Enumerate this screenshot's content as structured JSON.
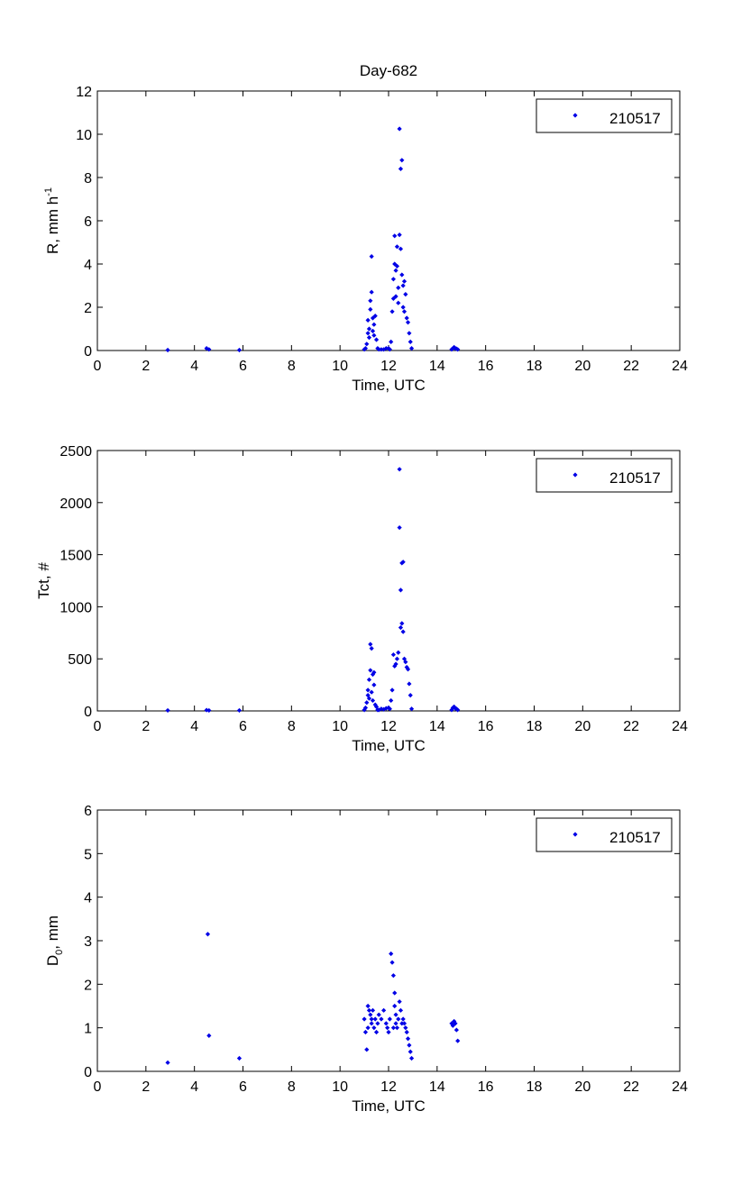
{
  "title": "Day-682",
  "legend_label": "210517",
  "colors": {
    "marker": "#0000e6",
    "axis": "#000000",
    "background": "#ffffff"
  },
  "chart_data": [
    {
      "type": "scatter",
      "title": "Day-682",
      "xlabel": "Time, UTC",
      "ylabel": "R, mm h",
      "ylabel_sup": "-1",
      "xlim": [
        0,
        24
      ],
      "ylim": [
        0,
        12
      ],
      "xticks": [
        0,
        2,
        4,
        6,
        8,
        10,
        12,
        14,
        16,
        18,
        20,
        22,
        24
      ],
      "yticks": [
        0,
        2,
        4,
        6,
        8,
        10,
        12
      ],
      "grid": false,
      "legend_position": "top-right",
      "series": [
        {
          "name": "210517",
          "x": [
            2.9,
            4.5,
            4.6,
            5.85,
            11.0,
            11.05,
            11.1,
            11.15,
            11.15,
            11.2,
            11.2,
            11.25,
            11.25,
            11.3,
            11.3,
            11.35,
            11.35,
            11.4,
            11.4,
            11.45,
            11.5,
            11.55,
            11.6,
            11.7,
            11.8,
            11.9,
            12.0,
            12.05,
            12.1,
            12.15,
            12.2,
            12.2,
            12.25,
            12.25,
            12.3,
            12.3,
            12.35,
            12.35,
            12.4,
            12.4,
            12.45,
            12.45,
            12.5,
            12.5,
            12.55,
            12.55,
            12.6,
            12.6,
            12.65,
            12.65,
            12.7,
            12.75,
            12.8,
            12.85,
            12.9,
            12.95,
            14.6,
            14.65,
            14.7,
            14.75,
            14.8,
            14.85
          ],
          "y": [
            0.02,
            0.1,
            0.05,
            0.02,
            0.05,
            0.1,
            0.3,
            0.8,
            1.4,
            0.6,
            1.0,
            1.9,
            2.3,
            2.7,
            4.35,
            0.9,
            1.5,
            0.7,
            1.2,
            1.6,
            0.5,
            0.1,
            0.05,
            0.05,
            0.05,
            0.1,
            0.1,
            0.05,
            0.4,
            1.8,
            2.4,
            3.3,
            4.0,
            5.3,
            3.7,
            2.5,
            4.8,
            3.9,
            2.2,
            2.9,
            10.25,
            5.35,
            8.4,
            4.7,
            3.5,
            8.8,
            3.0,
            2.0,
            1.8,
            3.2,
            2.6,
            1.5,
            1.3,
            0.8,
            0.4,
            0.1,
            0.05,
            0.1,
            0.15,
            0.1,
            0.08,
            0.05
          ]
        }
      ]
    },
    {
      "type": "scatter",
      "title": "",
      "xlabel": "Time, UTC",
      "ylabel": "Tct, #",
      "xlim": [
        0,
        24
      ],
      "ylim": [
        0,
        2500
      ],
      "xticks": [
        0,
        2,
        4,
        6,
        8,
        10,
        12,
        14,
        16,
        18,
        20,
        22,
        24
      ],
      "yticks": [
        0,
        500,
        1000,
        1500,
        2000,
        2500
      ],
      "grid": false,
      "legend_position": "top-right",
      "series": [
        {
          "name": "210517",
          "x": [
            2.9,
            4.5,
            4.6,
            5.85,
            11.0,
            11.05,
            11.1,
            11.15,
            11.15,
            11.2,
            11.2,
            11.25,
            11.25,
            11.3,
            11.3,
            11.35,
            11.35,
            11.4,
            11.4,
            11.45,
            11.5,
            11.55,
            11.6,
            11.7,
            11.8,
            11.9,
            12.0,
            12.05,
            12.1,
            12.15,
            12.2,
            12.25,
            12.3,
            12.35,
            12.4,
            12.45,
            12.45,
            12.5,
            12.5,
            12.55,
            12.55,
            12.6,
            12.6,
            12.65,
            12.7,
            12.75,
            12.8,
            12.85,
            12.9,
            12.95,
            14.6,
            14.65,
            14.7,
            14.75,
            14.8,
            14.85
          ],
          "y": [
            5,
            8,
            5,
            5,
            10,
            30,
            80,
            150,
            200,
            120,
            300,
            390,
            640,
            600,
            180,
            100,
            350,
            250,
            370,
            60,
            40,
            10,
            10,
            20,
            15,
            25,
            30,
            20,
            100,
            200,
            540,
            430,
            450,
            500,
            560,
            2320,
            1760,
            1160,
            800,
            840,
            1420,
            1430,
            760,
            500,
            470,
            420,
            400,
            260,
            150,
            20,
            10,
            30,
            40,
            25,
            20,
            10
          ]
        }
      ]
    },
    {
      "type": "scatter",
      "title": "",
      "xlabel": "Time, UTC",
      "ylabel": "D",
      "ylabel_sub": "0",
      "ylabel_suffix": ", mm",
      "xlim": [
        0,
        24
      ],
      "ylim": [
        0,
        6
      ],
      "xticks": [
        0,
        2,
        4,
        6,
        8,
        10,
        12,
        14,
        16,
        18,
        20,
        22,
        24
      ],
      "yticks": [
        0,
        1,
        2,
        3,
        4,
        5,
        6
      ],
      "grid": false,
      "legend_position": "top-right",
      "series": [
        {
          "name": "210517",
          "x": [
            2.9,
            4.55,
            4.6,
            5.85,
            11.0,
            11.05,
            11.1,
            11.15,
            11.15,
            11.2,
            11.25,
            11.3,
            11.3,
            11.35,
            11.4,
            11.45,
            11.5,
            11.55,
            11.6,
            11.7,
            11.8,
            11.9,
            11.95,
            12.0,
            12.05,
            12.1,
            12.15,
            12.2,
            12.2,
            12.25,
            12.25,
            12.3,
            12.3,
            12.35,
            12.4,
            12.45,
            12.5,
            12.55,
            12.6,
            12.65,
            12.7,
            12.75,
            12.8,
            12.85,
            12.9,
            12.95,
            14.6,
            14.65,
            14.7,
            14.75,
            14.8,
            14.85
          ],
          "y": [
            0.2,
            3.15,
            0.82,
            0.3,
            1.2,
            0.9,
            0.5,
            1.5,
            1.0,
            1.4,
            1.3,
            1.2,
            1.1,
            1.4,
            1.0,
            1.2,
            0.9,
            1.1,
            1.3,
            1.2,
            1.4,
            1.1,
            1.0,
            0.9,
            1.2,
            2.7,
            2.5,
            2.2,
            1.0,
            1.8,
            1.5,
            1.3,
            1.1,
            1.0,
            1.2,
            1.6,
            1.4,
            1.1,
            1.2,
            1.1,
            1.0,
            0.9,
            0.75,
            0.6,
            0.45,
            0.3,
            1.1,
            1.05,
            1.15,
            1.1,
            0.95,
            0.7
          ]
        }
      ]
    }
  ]
}
